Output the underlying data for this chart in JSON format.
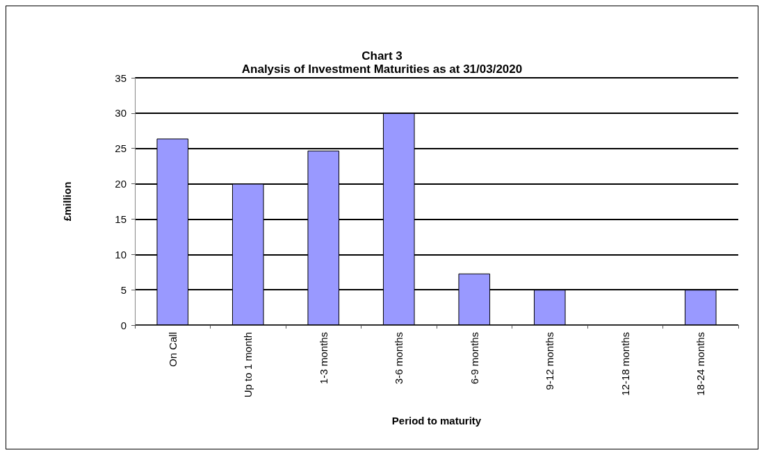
{
  "chart_data": {
    "type": "bar",
    "title": "Chart 3",
    "subtitle": "Analysis of Investment Maturities as at 31/03/2020",
    "xlabel": "Period to maturity",
    "ylabel": "£million",
    "categories": [
      "On Call",
      "Up to 1 month",
      "1-3 months",
      "3-6 months",
      "6-9 months",
      "9-12 months",
      "12-18 months",
      "18-24 months"
    ],
    "values": [
      26.4,
      20,
      24.7,
      30,
      7.3,
      5,
      0,
      5
    ],
    "color": "#9999ff",
    "ylim": [
      0,
      35
    ],
    "yticks": [
      0,
      5,
      10,
      15,
      20,
      25,
      30,
      35
    ],
    "grid": "y"
  }
}
